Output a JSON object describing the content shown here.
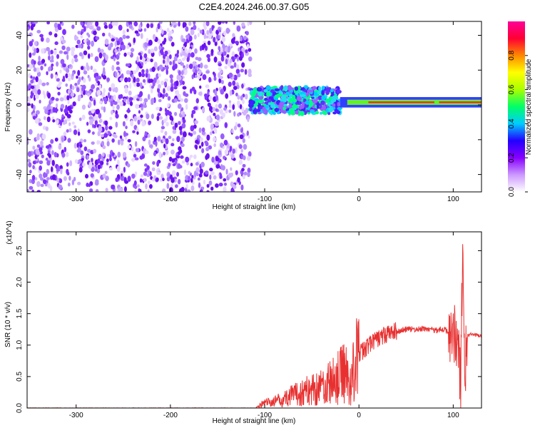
{
  "title": "C2E4.2024.246.00.37.G05",
  "chart_data": [
    {
      "type": "heatmap",
      "title": "C2E4.2024.246.00.37.G05",
      "xlabel": "Height of straight line (km)",
      "ylabel": "Frequency (Hz)",
      "xlim": [
        -352,
        130
      ],
      "ylim": [
        -50,
        48
      ],
      "xticks": [
        -300,
        -200,
        -100,
        0,
        100
      ],
      "yticks": [
        -40,
        -20,
        0,
        20,
        40
      ],
      "colorbar": {
        "label": "Normalized spectral amplitude",
        "range": [
          0,
          1
        ],
        "ticks": [
          0.0,
          0.2,
          0.4,
          0.6,
          0.8
        ],
        "colormap": [
          "#ffffff",
          "#cc99ff",
          "#8800ff",
          "#2200ff",
          "#00ccff",
          "#00ff66",
          "#aaff00",
          "#ffff00",
          "#ff8800",
          "#ff0033",
          "#ff0099"
        ]
      },
      "description_regions": [
        {
          "x_range": [
            -352,
            -115
          ],
          "freq_range": [
            -50,
            48
          ],
          "amplitude": "low (0.1-0.3)"
        },
        {
          "x_range": [
            -115,
            -20
          ],
          "freq_range": [
            -5,
            10
          ],
          "amplitude": "medium (0.3-0.5)"
        },
        {
          "x_range": [
            -20,
            130
          ],
          "freq_range": [
            0,
            3
          ],
          "amplitude": "high (0.7-1.0)"
        }
      ]
    },
    {
      "type": "line",
      "xlabel": "Height of straight line (km)",
      "ylabel": "SNR (10 * v/v)",
      "y_multiplier": "(x10^4)",
      "xlim": [
        -352,
        130
      ],
      "ylim": [
        0,
        2.8
      ],
      "xticks": [
        -300,
        -200,
        -100,
        0,
        100
      ],
      "yticks": [
        0.0,
        0.5,
        1.0,
        1.5,
        2.0,
        2.5
      ],
      "series": [
        {
          "color": "#e83030",
          "x": [
            -352,
            -300,
            -200,
            -110,
            -100,
            -90,
            -80,
            -70,
            -60,
            -50,
            -40,
            -30,
            -20,
            -15,
            -10,
            -5,
            0,
            10,
            20,
            30,
            40,
            50,
            60,
            70,
            80,
            90,
            95,
            100,
            105,
            108,
            110,
            112,
            115,
            120,
            130
          ],
          "y": [
            0.0,
            0.0,
            0.0,
            0.0,
            0.08,
            0.1,
            0.15,
            0.2,
            0.25,
            0.3,
            0.35,
            0.4,
            0.5,
            0.65,
            0.3,
            0.7,
            0.85,
            1.0,
            1.1,
            1.18,
            1.22,
            1.25,
            1.25,
            1.26,
            1.24,
            1.25,
            1.22,
            1.2,
            1.1,
            0.3,
            2.7,
            0.5,
            1.15,
            1.17,
            1.14
          ]
        }
      ]
    }
  ]
}
